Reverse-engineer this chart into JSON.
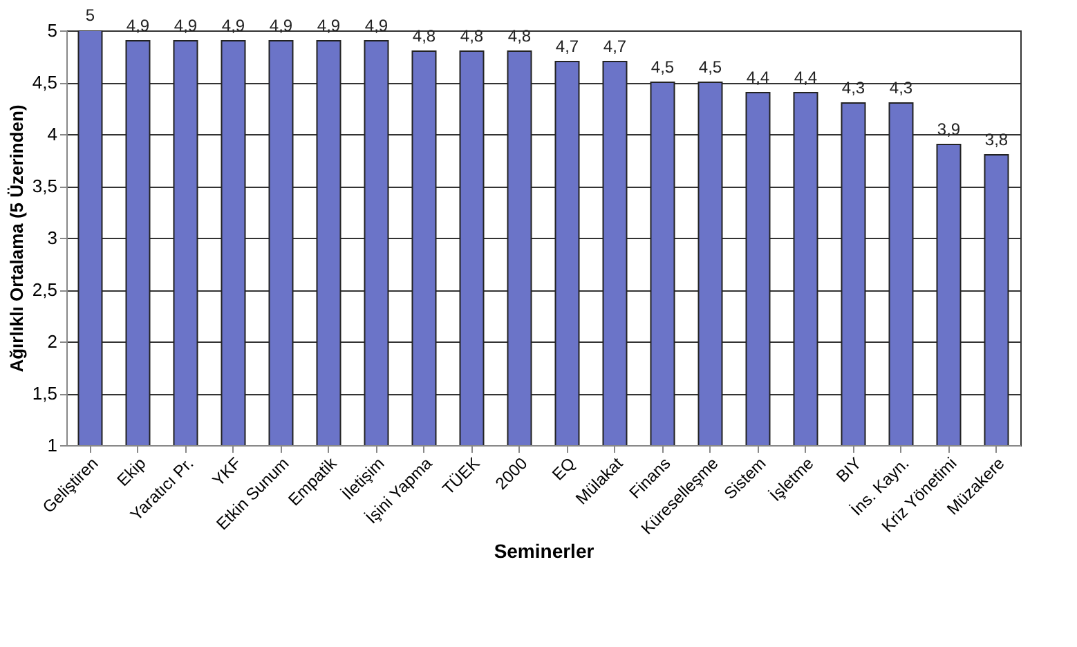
{
  "chart_data": {
    "type": "bar",
    "xlabel": "Seminerler",
    "ylabel": "Ağırlıklı Ortalama (5 Üzerinden)",
    "categories": [
      "Geliştiren",
      "Ekip",
      "Yaratıcı Pr.",
      "YKF",
      "Etkin Sunum",
      "Empatik",
      "İletişim",
      "İşini Yapma",
      "TÜEK",
      "2000",
      "EQ",
      "Mülakat",
      "Finans",
      "Küreselleşme",
      "Sistem",
      "İşletme",
      "BIY",
      "İns. Kayn.",
      "Kriz Yönetimi",
      "Müzakere"
    ],
    "values": [
      5,
      4.9,
      4.9,
      4.9,
      4.9,
      4.9,
      4.9,
      4.8,
      4.8,
      4.8,
      4.7,
      4.7,
      4.5,
      4.5,
      4.4,
      4.4,
      4.3,
      4.3,
      3.9,
      3.8
    ],
    "value_labels": [
      "5",
      "4,9",
      "4,9",
      "4,9",
      "4,9",
      "4,9",
      "4,9",
      "4,8",
      "4,8",
      "4,8",
      "4,7",
      "4,7",
      "4,5",
      "4,5",
      "4,4",
      "4,4",
      "4,3",
      "4,3",
      "3,9",
      "3,8"
    ],
    "color": "#6b74c8",
    "ylim": [
      1,
      5
    ],
    "yticks": [
      1,
      {
        "value": 1.5,
        "label": "1,5"
      },
      2,
      {
        "value": 2.5,
        "label": "2,5"
      },
      3,
      {
        "value": 3.5,
        "label": "3,5"
      },
      4,
      {
        "value": 4.5,
        "label": "4,5"
      },
      5
    ],
    "grid": "y"
  }
}
